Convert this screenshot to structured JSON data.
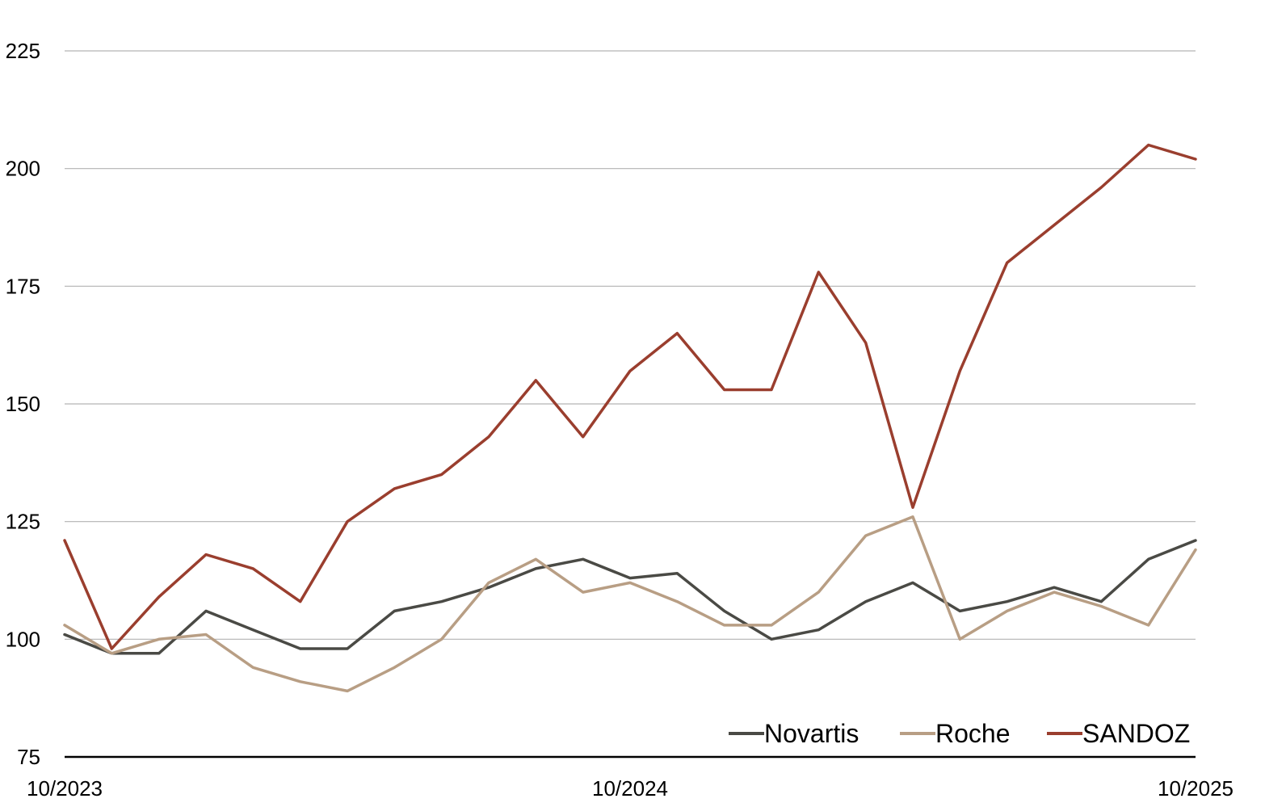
{
  "chart_data": {
    "type": "line",
    "title": "",
    "xlabel": "",
    "ylabel": "",
    "ylim": [
      75,
      225
    ],
    "y_ticks": [
      75,
      100,
      125,
      150,
      175,
      200,
      225
    ],
    "x_ticks": [
      "10/2023",
      "10/2024",
      "10/2025"
    ],
    "x_range": [
      "2023-10",
      "2025-10"
    ],
    "grid": "horizontal",
    "legend_position": "bottom-right",
    "series": [
      {
        "name": "Novartis",
        "color": "#4a4a45",
        "x": [
          "2023-10",
          "2023-11",
          "2023-12",
          "2024-01",
          "2024-02",
          "2024-03",
          "2024-04",
          "2024-05",
          "2024-06",
          "2024-07",
          "2024-08",
          "2024-09",
          "2024-10",
          "2024-11",
          "2024-12",
          "2025-01",
          "2025-02",
          "2025-03",
          "2025-04",
          "2025-05",
          "2025-06",
          "2025-07",
          "2025-08",
          "2025-09",
          "2025-10"
        ],
        "values": [
          101,
          97,
          97,
          106,
          102,
          98,
          98,
          106,
          108,
          111,
          115,
          117,
          113,
          114,
          106,
          100,
          102,
          108,
          112,
          106,
          108,
          111,
          108,
          117,
          121
        ]
      },
      {
        "name": "Roche",
        "color": "#b89e84",
        "x": [
          "2023-10",
          "2023-11",
          "2023-12",
          "2024-01",
          "2024-02",
          "2024-03",
          "2024-04",
          "2024-05",
          "2024-06",
          "2024-07",
          "2024-08",
          "2024-09",
          "2024-10",
          "2024-11",
          "2024-12",
          "2025-01",
          "2025-02",
          "2025-03",
          "2025-04",
          "2025-05",
          "2025-06",
          "2025-07",
          "2025-08",
          "2025-09",
          "2025-10"
        ],
        "values": [
          103,
          97,
          100,
          101,
          94,
          91,
          89,
          94,
          100,
          112,
          117,
          110,
          112,
          108,
          103,
          103,
          110,
          122,
          126,
          100,
          106,
          110,
          107,
          103,
          119
        ]
      },
      {
        "name": "SANDOZ",
        "color": "#9a3e2e",
        "x": [
          "2023-10",
          "2023-11",
          "2023-12",
          "2024-01",
          "2024-02",
          "2024-03",
          "2024-04",
          "2024-05",
          "2024-06",
          "2024-07",
          "2024-08",
          "2024-09",
          "2024-10",
          "2024-11",
          "2024-12",
          "2025-01",
          "2025-02",
          "2025-03",
          "2025-04",
          "2025-05",
          "2025-06",
          "2025-07",
          "2025-08",
          "2025-09",
          "2025-10"
        ],
        "values": [
          121,
          98,
          109,
          118,
          115,
          108,
          125,
          132,
          135,
          143,
          155,
          143,
          157,
          165,
          153,
          153,
          178,
          163,
          128,
          157,
          180,
          188,
          196,
          205,
          202
        ]
      }
    ]
  }
}
